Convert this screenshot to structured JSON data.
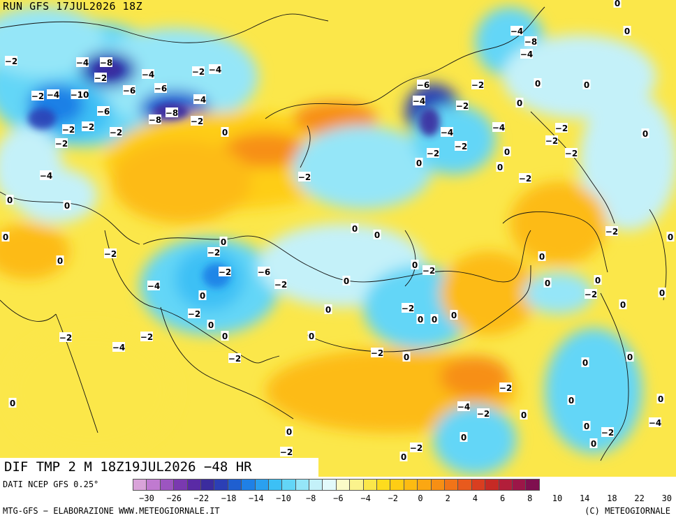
{
  "run_title": "RUN GFS 17JUL2026 18Z",
  "product_title": "DIF TMP 2 M 18Z19JUL2026 −48 HR",
  "source": "DATI NCEP GFS 0.25°",
  "credit_left": "MTG-GFS − ELABORAZIONE WWW.METEOGIORNALE.IT",
  "credit_right": "(C) METEOGIORNALE",
  "legend": {
    "colors": [
      "#d9a3d9",
      "#c07ad0",
      "#9c55c0",
      "#7a39b0",
      "#5a2aa5",
      "#3b2c9e",
      "#2b3fb5",
      "#1f5fd0",
      "#1f80e6",
      "#2aa0f0",
      "#3cc0f5",
      "#63d6f7",
      "#95e6f8",
      "#c4f1f9",
      "#e3fafb",
      "#fbfbc8",
      "#fbf38c",
      "#fbe74a",
      "#fddc1e",
      "#fecd14",
      "#fdbb12",
      "#fba712",
      "#f78f14",
      "#f17418",
      "#e85a1d",
      "#d93e20",
      "#c62a25",
      "#b21e3a",
      "#9c1648",
      "#7f0f4f"
    ],
    "tick_labels": [
      "−30",
      "−26",
      "−22",
      "−18",
      "−14",
      "−10",
      "−8",
      "−6",
      "−4",
      "−2",
      "0",
      "2",
      "4",
      "6",
      "8",
      "10",
      "14",
      "18",
      "22",
      "30"
    ]
  },
  "contour_labels": [
    "−2",
    "−4",
    "−8",
    "−2",
    "−4",
    "−2",
    "−4",
    "−6",
    "−6",
    "−4",
    "−2",
    "−4",
    "−10",
    "−6",
    "−8",
    "−8",
    "−2",
    "−2",
    "−2",
    "−2",
    "0",
    "−2",
    "−4",
    "−2",
    "−6",
    "−4",
    "−2",
    "−4",
    "−2",
    "0",
    "−2",
    "−4",
    "−8",
    "−4",
    "−2",
    "0",
    "0",
    "0",
    "−4",
    "−2",
    "0",
    "0",
    "0",
    "−2",
    "−2",
    "0",
    "0",
    "−2",
    "0",
    "0",
    "0",
    "0",
    "0",
    "−2",
    "0",
    "0",
    "−2",
    "−2",
    "−4",
    "−6",
    "−2",
    "0",
    "0",
    "−2",
    "0",
    "−2",
    "0",
    "0",
    "−2",
    "−4",
    "−2",
    "−2",
    "0",
    "0",
    "−2",
    "0",
    "0",
    "0",
    "−2",
    "0",
    "0",
    "0",
    "0",
    "−2",
    "−2",
    "0",
    "0",
    "0",
    "0",
    "0",
    "−2",
    "0",
    "−4",
    "−2",
    "0",
    "0",
    "−2",
    "0",
    "−4",
    "0",
    "0",
    "−2",
    "0",
    "0",
    "0",
    "−2"
  ]
}
